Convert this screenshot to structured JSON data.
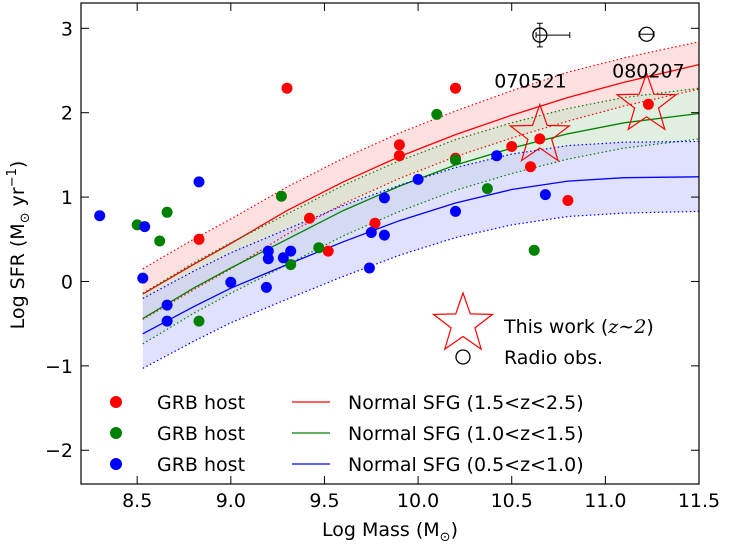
{
  "chart_data": {
    "type": "scatter",
    "title": "",
    "xlabel": "Log Mass (M",
    "xlabel_sub": "⊙",
    "xlabel_close": ")",
    "ylabel": "Log SFR (M",
    "ylabel_sub": "⊙",
    "ylabel_unit": " yr",
    "ylabel_sup": "−1",
    "ylabel_close": ")",
    "xlim": [
      8.2,
      11.5
    ],
    "ylim": [
      -2.4,
      3.3
    ],
    "xticks": [
      8.5,
      9.0,
      9.5,
      10.0,
      10.5,
      11.0,
      11.5
    ],
    "xtick_labels": [
      "8.5",
      "9.0",
      "9.5",
      "10.0",
      "10.5",
      "11.0",
      "11.5"
    ],
    "yticks": [
      -2,
      -1,
      0,
      1,
      2,
      3
    ],
    "ytick_labels": [
      "−2",
      "−1",
      "0",
      "1",
      "2",
      "3"
    ],
    "grb_hosts": [
      {
        "label": "GRB host",
        "color": "#ff0000",
        "points": [
          [
            9.3,
            2.29
          ],
          [
            10.2,
            2.29
          ],
          [
            9.9,
            1.62
          ],
          [
            9.9,
            1.49
          ],
          [
            10.2,
            1.46
          ],
          [
            10.5,
            1.6
          ],
          [
            10.6,
            1.36
          ],
          [
            10.65,
            1.69
          ],
          [
            10.8,
            0.96
          ],
          [
            9.42,
            0.75
          ],
          [
            9.77,
            0.69
          ],
          [
            9.52,
            0.36
          ],
          [
            8.83,
            0.5
          ],
          [
            11.23,
            2.1
          ]
        ]
      },
      {
        "label": "GRB host",
        "color": "#008000",
        "points": [
          [
            10.1,
            1.98
          ],
          [
            10.2,
            1.44
          ],
          [
            10.37,
            1.1
          ],
          [
            10.62,
            0.37
          ],
          [
            9.27,
            1.01
          ],
          [
            8.5,
            0.67
          ],
          [
            8.66,
            0.82
          ],
          [
            8.62,
            0.48
          ],
          [
            9.47,
            0.4
          ],
          [
            9.32,
            0.2
          ],
          [
            8.83,
            -0.47
          ]
        ]
      },
      {
        "label": "GRB host",
        "color": "#0000ff",
        "points": [
          [
            8.3,
            0.78
          ],
          [
            8.54,
            0.65
          ],
          [
            8.83,
            1.18
          ],
          [
            10.0,
            1.21
          ],
          [
            10.42,
            1.49
          ],
          [
            10.2,
            0.83
          ],
          [
            10.68,
            1.03
          ],
          [
            9.82,
            0.99
          ],
          [
            9.82,
            0.55
          ],
          [
            9.75,
            0.58
          ],
          [
            9.74,
            0.16
          ],
          [
            9.32,
            0.36
          ],
          [
            9.28,
            0.28
          ],
          [
            9.2,
            0.36
          ],
          [
            9.2,
            0.27
          ],
          [
            9.19,
            -0.07
          ],
          [
            9.0,
            -0.01
          ],
          [
            8.66,
            -0.28
          ],
          [
            8.66,
            -0.47
          ],
          [
            8.53,
            0.04
          ]
        ]
      }
    ],
    "this_work": [
      [
        10.65,
        1.73
      ],
      [
        11.22,
        2.1
      ]
    ],
    "radio_obs": [
      {
        "x": 10.65,
        "y": 2.92,
        "xerr": [
          0.02,
          0.16
        ],
        "yerr": 0.14
      },
      {
        "x": 11.22,
        "y": 2.93,
        "xerr": [
          0.04,
          0.04
        ],
        "yerr": 0.0
      }
    ],
    "burst_labels": [
      {
        "text": "070521",
        "x": 10.6,
        "y": 2.38
      },
      {
        "text": "080207",
        "x": 11.23,
        "y": 2.5
      }
    ],
    "normal_sfg": [
      {
        "label": "Normal SFG (1.5<z<2.5)",
        "color": "#ff0000",
        "fill": "#ffcccc",
        "x": [
          8.53,
          8.8,
          9.0,
          9.3,
          9.6,
          9.9,
          10.2,
          10.5,
          10.8,
          11.1,
          11.5
        ],
        "y": [
          -0.15,
          0.2,
          0.45,
          0.84,
          1.18,
          1.48,
          1.74,
          1.97,
          2.18,
          2.36,
          2.57
        ],
        "upper": [
          0.15,
          0.5,
          0.74,
          1.12,
          1.46,
          1.76,
          2.02,
          2.26,
          2.48,
          2.65,
          2.84
        ],
        "lower": [
          -0.45,
          -0.1,
          0.15,
          0.56,
          0.92,
          1.22,
          1.48,
          1.7,
          1.9,
          2.08,
          2.28
        ]
      },
      {
        "label": "Normal SFG (1.0<z<1.5)",
        "color": "#008000",
        "fill": "#cce5cc",
        "x": [
          8.53,
          8.8,
          9.0,
          9.3,
          9.6,
          9.9,
          10.2,
          10.5,
          10.8,
          11.1,
          11.5
        ],
        "y": [
          -0.44,
          -0.08,
          0.16,
          0.5,
          0.84,
          1.13,
          1.38,
          1.58,
          1.75,
          1.88,
          1.99
        ],
        "upper": [
          -0.14,
          0.22,
          0.46,
          0.8,
          1.14,
          1.43,
          1.68,
          1.88,
          2.05,
          2.18,
          2.29
        ],
        "lower": [
          -0.74,
          -0.38,
          -0.14,
          0.2,
          0.54,
          0.83,
          1.08,
          1.28,
          1.45,
          1.58,
          1.69
        ]
      },
      {
        "label": "Normal SFG (0.5<z<1.0)",
        "color": "#0000ff",
        "fill": "#ccccff",
        "x": [
          8.53,
          8.8,
          9.0,
          9.3,
          9.6,
          9.9,
          10.2,
          10.5,
          10.8,
          11.1,
          11.5
        ],
        "y": [
          -0.62,
          -0.3,
          -0.08,
          0.2,
          0.47,
          0.72,
          0.93,
          1.09,
          1.19,
          1.23,
          1.24
        ],
        "upper": [
          -0.2,
          0.12,
          0.34,
          0.62,
          0.9,
          1.14,
          1.35,
          1.51,
          1.61,
          1.65,
          1.66
        ],
        "lower": [
          -1.03,
          -0.71,
          -0.49,
          -0.21,
          0.06,
          0.31,
          0.52,
          0.67,
          0.77,
          0.81,
          0.83
        ]
      }
    ],
    "legend_markers": [
      {
        "symbol": "star",
        "text": "This work (",
        "math": "z∼2",
        "close": ")"
      },
      {
        "symbol": "circle",
        "text": "Radio obs."
      }
    ],
    "legend_placement": "lower-left"
  }
}
